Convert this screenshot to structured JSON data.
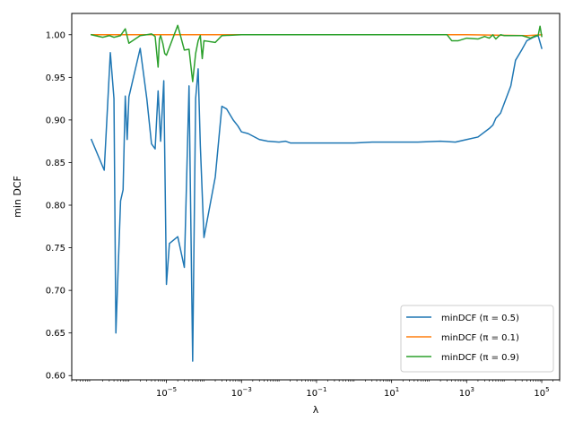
{
  "chart_data": {
    "type": "line",
    "title": "",
    "xlabel": "λ",
    "ylabel": "min DCF",
    "xscale": "log",
    "xlim": [
      3e-08,
      300000.0
    ],
    "ylim": [
      0.595,
      1.025
    ],
    "xticks": [
      {
        "value": 1e-05,
        "base": "10",
        "exp": "−5"
      },
      {
        "value": 0.001,
        "base": "10",
        "exp": "−3"
      },
      {
        "value": 0.1,
        "base": "10",
        "exp": "−1"
      },
      {
        "value": 10,
        "base": "10",
        "exp": "1"
      },
      {
        "value": 1000,
        "base": "10",
        "exp": "3"
      },
      {
        "value": 100000,
        "base": "10",
        "exp": "5"
      }
    ],
    "yticks": [
      {
        "value": 0.6,
        "label": "0.60"
      },
      {
        "value": 0.65,
        "label": "0.65"
      },
      {
        "value": 0.7,
        "label": "0.70"
      },
      {
        "value": 0.75,
        "label": "0.75"
      },
      {
        "value": 0.8,
        "label": "0.80"
      },
      {
        "value": 0.85,
        "label": "0.85"
      },
      {
        "value": 0.9,
        "label": "0.90"
      },
      {
        "value": 0.95,
        "label": "0.95"
      },
      {
        "value": 1.0,
        "label": "1.00"
      }
    ],
    "grid": false,
    "legend_position": "lower-right",
    "series": [
      {
        "name": "minDCF (π = 0.5)",
        "color": "#1f77b4",
        "points": [
          [
            1e-07,
            0.877
          ],
          [
            2.2e-07,
            0.841
          ],
          [
            3.2e-07,
            0.979
          ],
          [
            4e-07,
            0.925
          ],
          [
            4.5e-07,
            0.65
          ],
          [
            6e-07,
            0.805
          ],
          [
            7e-07,
            0.818
          ],
          [
            8e-07,
            0.928
          ],
          [
            9e-07,
            0.877
          ],
          [
            1e-06,
            0.927
          ],
          [
            2e-06,
            0.984
          ],
          [
            3e-06,
            0.925
          ],
          [
            4e-06,
            0.872
          ],
          [
            5e-06,
            0.866
          ],
          [
            6e-06,
            0.934
          ],
          [
            7e-06,
            0.875
          ],
          [
            8.5e-06,
            0.946
          ],
          [
            1e-05,
            0.707
          ],
          [
            1.2e-05,
            0.755
          ],
          [
            2e-05,
            0.763
          ],
          [
            3e-05,
            0.727
          ],
          [
            4e-05,
            0.94
          ],
          [
            5e-05,
            0.617
          ],
          [
            6e-05,
            0.925
          ],
          [
            7e-05,
            0.96
          ],
          [
            8e-05,
            0.87
          ],
          [
            0.0001,
            0.762
          ],
          [
            0.0002,
            0.833
          ],
          [
            0.0003,
            0.916
          ],
          [
            0.0004,
            0.913
          ],
          [
            0.0006,
            0.9
          ],
          [
            0.0008,
            0.893
          ],
          [
            0.001,
            0.886
          ],
          [
            0.0015,
            0.884
          ],
          [
            0.003,
            0.877
          ],
          [
            0.005,
            0.875
          ],
          [
            0.01,
            0.874
          ],
          [
            0.015,
            0.875
          ],
          [
            0.02,
            0.873
          ],
          [
            0.1,
            0.873
          ],
          [
            1,
            0.873
          ],
          [
            3,
            0.874
          ],
          [
            10,
            0.874
          ],
          [
            50,
            0.874
          ],
          [
            200,
            0.875
          ],
          [
            500,
            0.874
          ],
          [
            1000,
            0.877
          ],
          [
            2000,
            0.88
          ],
          [
            4000,
            0.89
          ],
          [
            5000,
            0.894
          ],
          [
            6000,
            0.902
          ],
          [
            8000,
            0.908
          ],
          [
            15000,
            0.94
          ],
          [
            20000,
            0.97
          ],
          [
            30000,
            0.983
          ],
          [
            40000,
            0.993
          ],
          [
            60000,
            0.997
          ],
          [
            80000,
            0.999
          ],
          [
            100000,
            0.984
          ]
        ]
      },
      {
        "name": "minDCF (π = 0.1)",
        "color": "#ff7f0e",
        "points": [
          [
            1e-07,
            1.0
          ],
          [
            1e-05,
            1.0
          ],
          [
            0.001,
            1.0
          ],
          [
            0.1,
            1.0
          ],
          [
            10,
            1.0
          ],
          [
            1000,
            1.0
          ],
          [
            40000,
            0.999
          ],
          [
            100000,
            1.0
          ]
        ]
      },
      {
        "name": "minDCF (π = 0.9)",
        "color": "#2ca02c",
        "points": [
          [
            1e-07,
            1.0
          ],
          [
            2e-07,
            0.997
          ],
          [
            3e-07,
            0.999
          ],
          [
            4e-07,
            0.997
          ],
          [
            6e-07,
            0.999
          ],
          [
            8e-07,
            1.007
          ],
          [
            1e-06,
            0.99
          ],
          [
            2e-06,
            0.999
          ],
          [
            3e-06,
            1.0
          ],
          [
            4e-06,
            1.001
          ],
          [
            5e-06,
            0.998
          ],
          [
            6e-06,
            0.962
          ],
          [
            6.5e-06,
            0.995
          ],
          [
            7e-06,
            0.999
          ],
          [
            8e-06,
            0.99
          ],
          [
            9e-06,
            0.978
          ],
          [
            1e-05,
            0.976
          ],
          [
            2e-05,
            1.011
          ],
          [
            3e-05,
            0.982
          ],
          [
            4e-05,
            0.983
          ],
          [
            5e-05,
            0.945
          ],
          [
            6e-05,
            0.978
          ],
          [
            7e-05,
            0.993
          ],
          [
            8e-05,
            0.999
          ],
          [
            9e-05,
            0.972
          ],
          [
            0.0001,
            0.993
          ],
          [
            0.0002,
            0.991
          ],
          [
            0.0003,
            0.999
          ],
          [
            0.001,
            1.0
          ],
          [
            100,
            1.0
          ],
          [
            200,
            1.0
          ],
          [
            300,
            1.0
          ],
          [
            400,
            0.993
          ],
          [
            600,
            0.993
          ],
          [
            1000,
            0.996
          ],
          [
            2000,
            0.995
          ],
          [
            3000,
            0.998
          ],
          [
            4000,
            0.996
          ],
          [
            5000,
            1.0
          ],
          [
            5500,
            0.997
          ],
          [
            6000,
            0.995
          ],
          [
            7000,
            0.998
          ],
          [
            8000,
            1.0
          ],
          [
            10000,
            0.999
          ],
          [
            30000,
            0.999
          ],
          [
            50000,
            0.996
          ],
          [
            70000,
            0.999
          ],
          [
            80000,
            0.999
          ],
          [
            90000,
            1.01
          ],
          [
            100000,
            0.998
          ]
        ]
      }
    ]
  }
}
